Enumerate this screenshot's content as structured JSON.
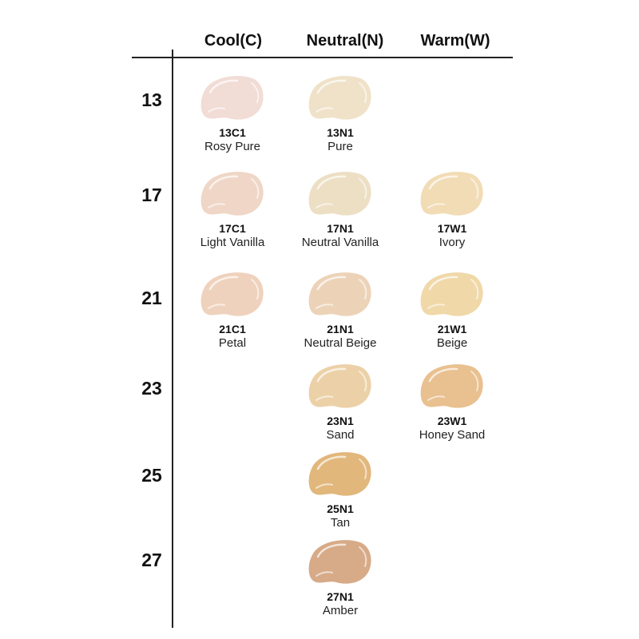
{
  "columns": [
    "Cool(C)",
    "Neutral(N)",
    "Warm(W)"
  ],
  "rows": [
    "13",
    "17",
    "21",
    "23",
    "25",
    "27"
  ],
  "shades": [
    {
      "row": 0,
      "col": 0,
      "code": "13C1",
      "name": "Rosy Pure",
      "color": "#f2dcd6"
    },
    {
      "row": 0,
      "col": 1,
      "code": "13N1",
      "name": "Pure",
      "color": "#efe2c8"
    },
    {
      "row": 1,
      "col": 0,
      "code": "17C1",
      "name": "Light Vanilla",
      "color": "#efd6c6"
    },
    {
      "row": 1,
      "col": 1,
      "code": "17N1",
      "name": "Neutral Vanilla",
      "color": "#ecdfc4"
    },
    {
      "row": 1,
      "col": 2,
      "code": "17W1",
      "name": "Ivory",
      "color": "#f1dcb5"
    },
    {
      "row": 2,
      "col": 0,
      "code": "21C1",
      "name": "Petal",
      "color": "#efd2bd"
    },
    {
      "row": 2,
      "col": 1,
      "code": "21N1",
      "name": "Neutral Beige",
      "color": "#ecd3b8"
    },
    {
      "row": 2,
      "col": 2,
      "code": "21W1",
      "name": "Beige",
      "color": "#f0d8a8"
    },
    {
      "row": 3,
      "col": 1,
      "code": "23N1",
      "name": "Sand",
      "color": "#ecd1a8"
    },
    {
      "row": 3,
      "col": 2,
      "code": "23W1",
      "name": "Honey Sand",
      "color": "#e9c08f"
    },
    {
      "row": 4,
      "col": 1,
      "code": "25N1",
      "name": "Tan",
      "color": "#e2b77c"
    },
    {
      "row": 5,
      "col": 1,
      "code": "27N1",
      "name": "Amber",
      "color": "#d7aa88"
    }
  ]
}
